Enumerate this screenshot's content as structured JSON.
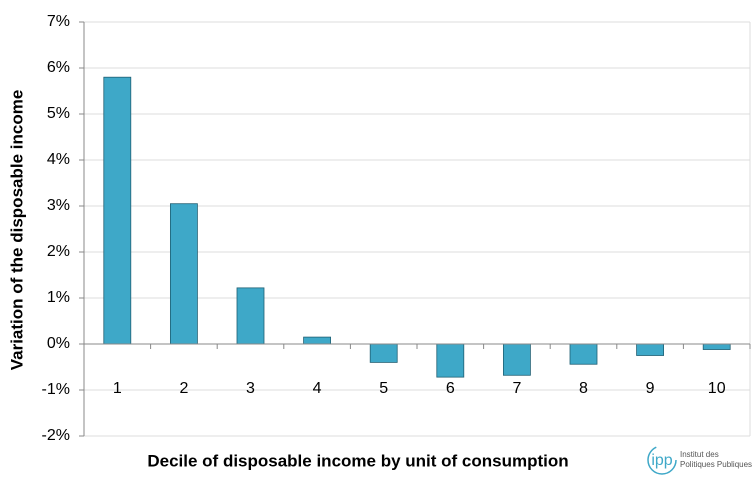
{
  "chart_data": {
    "type": "bar",
    "x_label": "Decile of disposable income by unit of consumption",
    "y_label": "Variation of the disposable income",
    "categories": [
      "1",
      "2",
      "3",
      "4",
      "5",
      "6",
      "7",
      "8",
      "9",
      "10"
    ],
    "values": [
      5.8,
      3.05,
      1.22,
      0.15,
      -0.4,
      -0.72,
      -0.68,
      -0.44,
      -0.25,
      -0.12
    ],
    "color": "#3ea8c8",
    "ylim": [
      -2,
      7
    ],
    "yticks": [
      {
        "value": -2,
        "label": "-2%"
      },
      {
        "value": -1,
        "label": "-1%"
      },
      {
        "value": 0,
        "label": "0%"
      },
      {
        "value": 1,
        "label": "1%"
      },
      {
        "value": 2,
        "label": "2%"
      },
      {
        "value": 3,
        "label": "3%"
      },
      {
        "value": 4,
        "label": "4%"
      },
      {
        "value": 5,
        "label": "5%"
      },
      {
        "value": 6,
        "label": "6%"
      },
      {
        "value": 7,
        "label": "7%"
      }
    ],
    "grid": true
  },
  "logo": {
    "mark": "ipp",
    "line1": "Institut des",
    "line2": "Politiques Publiques"
  }
}
